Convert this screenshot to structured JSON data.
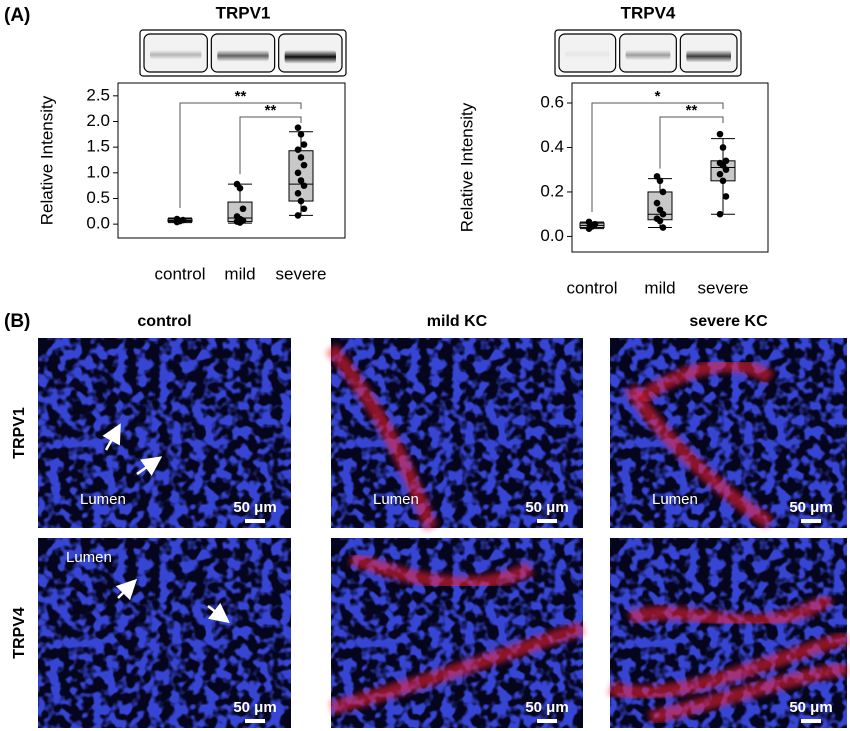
{
  "panel_labels": [
    "(A)",
    "(B)"
  ],
  "chart_data": [
    {
      "type": "box",
      "title": "TRPV1",
      "ylabel": "Relative Intensity",
      "categories": [
        "control",
        "mild",
        "severe"
      ],
      "color": "#c8c8c8",
      "ylim": [
        -0.27,
        2.75
      ],
      "yticks": [
        {
          "value": 0,
          "label": "0.0"
        },
        0.5,
        {
          "value": 1,
          "label": "1.0"
        },
        1.5,
        {
          "value": 2,
          "label": "2.0"
        },
        2.5
      ],
      "boxes": [
        {
          "whisker_low": 0.03,
          "q1": 0.05,
          "median": 0.07,
          "q3": 0.1,
          "whisker_high": 0.12,
          "points": [
            0.04,
            0.06,
            0.08,
            0.1
          ]
        },
        {
          "whisker_low": 0.02,
          "q1": 0.05,
          "median": 0.12,
          "q3": 0.43,
          "whisker_high": 0.78,
          "points": [
            0.78,
            0.7,
            0.3,
            0.15,
            0.1,
            0.07,
            0.05,
            0.03
          ]
        },
        {
          "whisker_low": 0.17,
          "q1": 0.45,
          "median": 0.78,
          "q3": 1.43,
          "whisker_high": 1.8,
          "points": [
            1.88,
            1.75,
            1.55,
            1.45,
            1.3,
            1.15,
            1.0,
            0.85,
            0.75,
            0.6,
            0.45,
            0.3,
            0.17
          ]
        }
      ],
      "annotations": [
        "**",
        "**"
      ]
    },
    {
      "type": "box",
      "title": "TRPV4",
      "ylabel": "Relative Intensity",
      "categories": [
        "control",
        "mild",
        "severe"
      ],
      "color": "#c8c8c8",
      "ylim": [
        -0.07,
        0.69
      ],
      "yticks": [
        {
          "value": 0,
          "label": "0.0"
        },
        0.2,
        0.4,
        0.6
      ],
      "boxes": [
        {
          "whisker_low": 0.035,
          "q1": 0.04,
          "median": 0.05,
          "q3": 0.06,
          "whisker_high": 0.065,
          "points": [
            0.035,
            0.045,
            0.055,
            0.065
          ]
        },
        {
          "whisker_low": 0.04,
          "q1": 0.075,
          "median": 0.1,
          "q3": 0.2,
          "whisker_high": 0.26,
          "points": [
            0.27,
            0.25,
            0.2,
            0.15,
            0.12,
            0.1,
            0.08,
            0.07,
            0.04
          ]
        },
        {
          "whisker_low": 0.1,
          "q1": 0.25,
          "median": 0.31,
          "q3": 0.34,
          "whisker_high": 0.44,
          "points": [
            0.46,
            0.4,
            0.34,
            0.33,
            0.32,
            0.3,
            0.28,
            0.25,
            0.18,
            0.1
          ]
        }
      ],
      "annotations": [
        "*",
        "**"
      ]
    }
  ],
  "micrographs": {
    "columns": [
      "control",
      "mild KC",
      "severe KC"
    ],
    "rows": [
      "TRPV1",
      "TRPV4"
    ],
    "lumen_label": "Lumen",
    "scale_bar": "50 μm"
  }
}
